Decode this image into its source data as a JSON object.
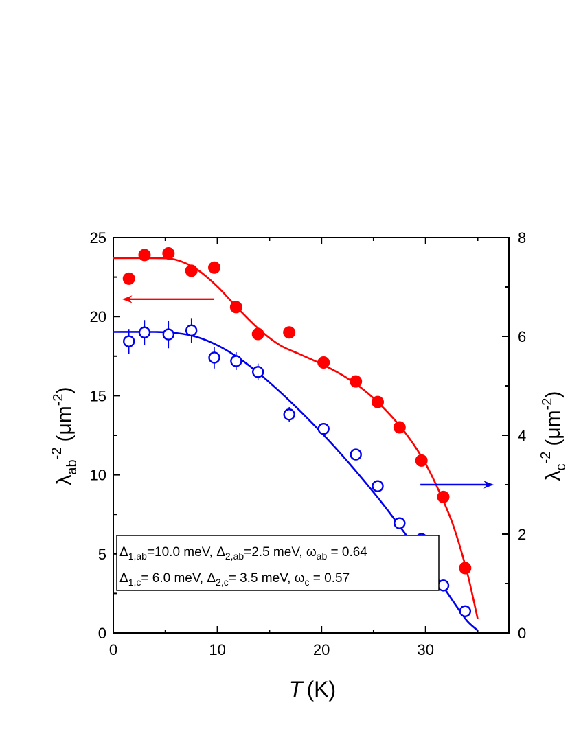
{
  "chart_data": {
    "type": "scatter",
    "x_axis": {
      "label": "T",
      "unit": "(K)",
      "range": [
        0,
        38
      ],
      "ticks": [
        0,
        10,
        20,
        30
      ],
      "tick_labels": [
        "0",
        "10",
        "20",
        "30"
      ]
    },
    "y_axis_left": {
      "label_symbol": "λ",
      "label_sub": "ab",
      "label_sup": "-2",
      "label_unit_open": "(",
      "label_unit_symbol": "μm",
      "label_unit_sup": "-2",
      "label_unit_close": ")",
      "range": [
        0,
        25
      ],
      "ticks": [
        0,
        5,
        10,
        15,
        20,
        25
      ],
      "tick_labels": [
        "0",
        "5",
        "10",
        "15",
        "20",
        "25"
      ]
    },
    "y_axis_right": {
      "label_symbol": "λ",
      "label_sub": "c",
      "label_sup": "-2",
      "label_unit_open": "(",
      "label_unit_symbol": "μm",
      "label_unit_sup": "-2",
      "label_unit_close": ")",
      "range": [
        0,
        8
      ],
      "ticks": [
        0,
        2,
        4,
        6,
        8
      ],
      "tick_labels": [
        "0",
        "2",
        "4",
        "6",
        "8"
      ]
    },
    "series": [
      {
        "axis": "left",
        "color": "#ff0000",
        "marker": "filled-circle",
        "x": [
          1.5,
          3.0,
          5.3,
          7.5,
          9.7,
          11.8,
          13.9,
          16.9,
          20.2,
          23.3,
          25.4,
          27.5,
          29.6,
          31.7,
          33.8
        ],
        "y": [
          22.4,
          23.9,
          24.0,
          22.9,
          23.1,
          20.6,
          18.9,
          19.0,
          17.1,
          15.9,
          14.6,
          13.0,
          10.9,
          8.6,
          4.1
        ],
        "yerr": [
          0.3,
          0.3,
          0.3,
          0.3,
          0.3,
          0.2,
          0.2,
          0.2,
          0.2,
          0.2,
          0.2,
          0.2,
          0.2,
          0.2,
          0.2
        ],
        "fit": {
          "x": [
            0,
            4,
            6,
            8,
            10,
            12,
            14,
            16,
            18,
            20,
            22,
            24,
            26,
            28,
            30,
            32,
            33,
            34,
            34.6,
            35.0
          ],
          "y": [
            23.7,
            23.7,
            23.6,
            23.0,
            21.9,
            20.5,
            19.2,
            18.2,
            17.6,
            17.0,
            16.3,
            15.4,
            14.2,
            12.7,
            10.7,
            7.9,
            6.1,
            3.8,
            2.1,
            0.9
          ]
        }
      },
      {
        "axis": "right",
        "color": "#0000ee",
        "marker": "open-circle",
        "x": [
          1.5,
          3.0,
          5.3,
          7.5,
          9.7,
          11.8,
          13.9,
          16.9,
          20.2,
          23.3,
          25.4,
          27.5,
          29.6,
          31.7,
          33.8
        ],
        "y": [
          5.9,
          6.08,
          6.04,
          6.12,
          5.57,
          5.5,
          5.28,
          4.42,
          4.13,
          3.61,
          2.97,
          2.22,
          1.9,
          0.96,
          0.44
        ],
        "yerr": [
          0.25,
          0.25,
          0.28,
          0.25,
          0.22,
          0.18,
          0.17,
          0.15,
          0.12,
          0.1,
          0.08,
          0.05,
          0.05,
          0.04,
          0.04
        ],
        "fit": {
          "x": [
            0,
            4,
            6,
            8,
            10,
            12,
            14,
            16,
            18,
            20,
            22,
            24,
            26,
            28,
            30,
            32,
            33,
            34,
            35.0
          ],
          "y": [
            6.09,
            6.09,
            6.07,
            5.99,
            5.82,
            5.57,
            5.25,
            4.88,
            4.48,
            4.05,
            3.59,
            3.1,
            2.58,
            2.02,
            1.44,
            0.84,
            0.53,
            0.24,
            0.05
          ]
        }
      }
    ],
    "arrows": [
      {
        "axis": "left",
        "direction": "left",
        "x_from": 9.7,
        "x_to": 0.9,
        "y": 21.1,
        "color": "#ff0000"
      },
      {
        "axis": "right",
        "direction": "right",
        "x_from": 29.5,
        "x_to": 36.5,
        "y": 3.0,
        "color": "#0000ee"
      }
    ],
    "annotation_lines": [
      [
        {
          "t": "Δ",
          "s": "main"
        },
        {
          "t": "1,ab",
          "s": "sub"
        },
        {
          "t": "=10.0 meV, ",
          "s": "main"
        },
        {
          "t": "Δ",
          "s": "main"
        },
        {
          "t": "2,ab",
          "s": "sub"
        },
        {
          "t": "=2.5 meV, ",
          "s": "main"
        },
        {
          "t": "ω",
          "s": "main"
        },
        {
          "t": "ab",
          "s": "sub"
        },
        {
          "t": " = 0.64",
          "s": "main"
        }
      ],
      [
        {
          "t": "Δ",
          "s": "main"
        },
        {
          "t": "1,c",
          "s": "sub"
        },
        {
          "t": "= 6.0 meV, ",
          "s": "main"
        },
        {
          "t": "Δ",
          "s": "main"
        },
        {
          "t": "2,c",
          "s": "sub"
        },
        {
          "t": "= 3.5 meV, ",
          "s": "main"
        },
        {
          "t": "ω",
          "s": "main"
        },
        {
          "t": "c",
          "s": "sub"
        },
        {
          "t": " = 0.57",
          "s": "main"
        }
      ]
    ]
  }
}
